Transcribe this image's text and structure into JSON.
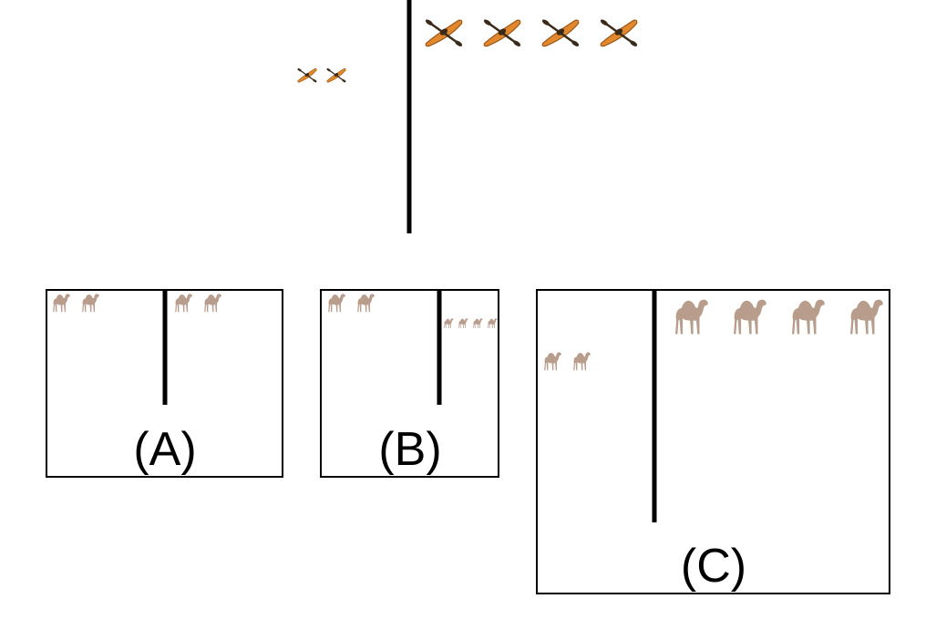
{
  "prompt": {
    "left_group": {
      "icon": "kayak-icon",
      "count": 2,
      "size": "small"
    },
    "right_group": {
      "icon": "kayak-icon",
      "count": 4,
      "size": "large"
    }
  },
  "options": [
    {
      "label": "(A)",
      "left_group": {
        "icon": "camel-icon",
        "count": 2,
        "size": "small"
      },
      "right_group": {
        "icon": "camel-icon",
        "count": 2,
        "size": "small"
      }
    },
    {
      "label": "(B)",
      "left_group": {
        "icon": "camel-icon",
        "count": 2,
        "size": "small"
      },
      "right_group": {
        "icon": "camel-icon",
        "count": 4,
        "size": "tiny"
      }
    },
    {
      "label": "(C)",
      "left_group": {
        "icon": "camel-icon",
        "count": 2,
        "size": "small"
      },
      "right_group": {
        "icon": "camel-icon",
        "count": 4,
        "size": "large"
      }
    }
  ],
  "colors": {
    "line": "#000000",
    "kayak_hull": "#e0882b",
    "kayak_dark": "#3a2a1a",
    "camel": "#b89c8c"
  }
}
